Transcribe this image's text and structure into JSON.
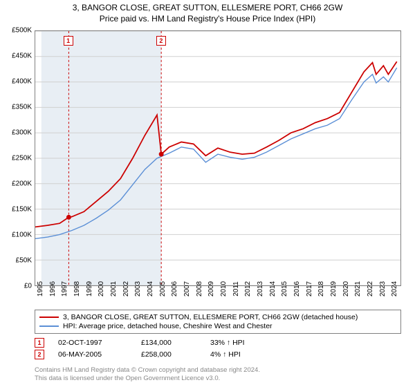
{
  "chart": {
    "title_line1": "3, BANGOR CLOSE, GREAT SUTTON, ELLESMERE PORT, CH66 2GW",
    "title_line2": "Price paid vs. HM Land Registry's House Price Index (HPI)",
    "title_fontsize": 12,
    "type": "line",
    "background_color": "#ffffff",
    "plot_border_color": "#808080",
    "grid_color": "#d0d0d0",
    "muted_band_color": "#e8eef4",
    "muted_band_x_range": [
      1995.5,
      2005.35
    ],
    "ylim": [
      0,
      500000
    ],
    "ytick_step": 50000,
    "yticks": [
      {
        "v": 0,
        "label": "£0"
      },
      {
        "v": 50000,
        "label": "£50K"
      },
      {
        "v": 100000,
        "label": "£100K"
      },
      {
        "v": 150000,
        "label": "£150K"
      },
      {
        "v": 200000,
        "label": "£200K"
      },
      {
        "v": 250000,
        "label": "£250K"
      },
      {
        "v": 300000,
        "label": "£300K"
      },
      {
        "v": 350000,
        "label": "£350K"
      },
      {
        "v": 400000,
        "label": "£400K"
      },
      {
        "v": 450000,
        "label": "£450K"
      },
      {
        "v": 500000,
        "label": "£500K"
      }
    ],
    "xlim": [
      1995,
      2025
    ],
    "xticks": [
      1995,
      1996,
      1997,
      1998,
      1999,
      2000,
      2001,
      2002,
      2003,
      2004,
      2005,
      2006,
      2007,
      2008,
      2009,
      2010,
      2011,
      2012,
      2013,
      2014,
      2015,
      2016,
      2017,
      2018,
      2019,
      2020,
      2021,
      2022,
      2023,
      2024
    ],
    "series": [
      {
        "name": "property",
        "color": "#cc0000",
        "line_width": 1.8,
        "label": "3, BANGOR CLOSE, GREAT SUTTON, ELLESMERE PORT, CH66 2GW (detached house)",
        "data": [
          [
            1995,
            115000
          ],
          [
            1996,
            118000
          ],
          [
            1997,
            122000
          ],
          [
            1997.75,
            134000
          ],
          [
            1998,
            135000
          ],
          [
            1999,
            145000
          ],
          [
            2000,
            165000
          ],
          [
            2001,
            185000
          ],
          [
            2002,
            210000
          ],
          [
            2003,
            250000
          ],
          [
            2004,
            295000
          ],
          [
            2005,
            335000
          ],
          [
            2005.35,
            258000
          ],
          [
            2006,
            272000
          ],
          [
            2007,
            282000
          ],
          [
            2008,
            278000
          ],
          [
            2009,
            255000
          ],
          [
            2010,
            270000
          ],
          [
            2011,
            262000
          ],
          [
            2012,
            258000
          ],
          [
            2013,
            260000
          ],
          [
            2014,
            272000
          ],
          [
            2015,
            285000
          ],
          [
            2016,
            300000
          ],
          [
            2017,
            308000
          ],
          [
            2018,
            320000
          ],
          [
            2019,
            328000
          ],
          [
            2020,
            340000
          ],
          [
            2021,
            380000
          ],
          [
            2022,
            420000
          ],
          [
            2022.7,
            438000
          ],
          [
            2023,
            415000
          ],
          [
            2023.6,
            432000
          ],
          [
            2024,
            415000
          ],
          [
            2024.7,
            440000
          ]
        ]
      },
      {
        "name": "hpi",
        "color": "#5b8fd6",
        "line_width": 1.4,
        "label": "HPI: Average price, detached house, Cheshire West and Chester",
        "data": [
          [
            1995,
            92000
          ],
          [
            1996,
            95000
          ],
          [
            1997,
            100000
          ],
          [
            1998,
            108000
          ],
          [
            1999,
            118000
          ],
          [
            2000,
            132000
          ],
          [
            2001,
            148000
          ],
          [
            2002,
            168000
          ],
          [
            2003,
            198000
          ],
          [
            2004,
            228000
          ],
          [
            2005,
            250000
          ],
          [
            2006,
            260000
          ],
          [
            2007,
            272000
          ],
          [
            2008,
            268000
          ],
          [
            2009,
            242000
          ],
          [
            2010,
            258000
          ],
          [
            2011,
            252000
          ],
          [
            2012,
            248000
          ],
          [
            2013,
            252000
          ],
          [
            2014,
            262000
          ],
          [
            2015,
            275000
          ],
          [
            2016,
            288000
          ],
          [
            2017,
            298000
          ],
          [
            2018,
            308000
          ],
          [
            2019,
            315000
          ],
          [
            2020,
            328000
          ],
          [
            2021,
            365000
          ],
          [
            2022,
            400000
          ],
          [
            2022.7,
            415000
          ],
          [
            2023,
            398000
          ],
          [
            2023.6,
            410000
          ],
          [
            2024,
            400000
          ],
          [
            2024.7,
            428000
          ]
        ]
      }
    ],
    "event_markers": [
      {
        "n": "1",
        "x": 1997.75,
        "y": 134000,
        "dash_color": "#cc0000"
      },
      {
        "n": "2",
        "x": 2005.35,
        "y": 258000,
        "dash_color": "#cc0000"
      }
    ],
    "marker_point_color": "#cc0000",
    "label_fontsize": 10
  },
  "legend": {
    "border_color": "#808080",
    "items": [
      {
        "color": "#cc0000",
        "label": "3, BANGOR CLOSE, GREAT SUTTON, ELLESMERE PORT, CH66 2GW (detached house)"
      },
      {
        "color": "#5b8fd6",
        "label": "HPI: Average price, detached house, Cheshire West and Chester"
      }
    ]
  },
  "events": [
    {
      "n": "1",
      "date": "02-OCT-1997",
      "price": "£134,000",
      "delta": "33% ↑ HPI"
    },
    {
      "n": "2",
      "date": "06-MAY-2005",
      "price": "£258,000",
      "delta": "4% ↑ HPI"
    }
  ],
  "footer": {
    "line1": "Contains HM Land Registry data © Crown copyright and database right 2024.",
    "line2": "This data is licensed under the Open Government Licence v3.0.",
    "color": "#888888",
    "fontsize": 9.5
  }
}
